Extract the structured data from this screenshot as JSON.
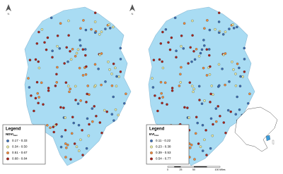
{
  "maps": [
    {
      "legend": {
        "title": "Legend",
        "field": "NDVI",
        "field_sub": "max",
        "classes": [
          {
            "label": "0.17 - 0.33",
            "color": "#3b6fb6"
          },
          {
            "label": "0.34 - 0.50",
            "color": "#e8e8a0"
          },
          {
            "label": "0.51 - 0.67",
            "color": "#f08a3c"
          },
          {
            "label": "0.68 - 0.84",
            "color": "#a8231c"
          }
        ]
      }
    },
    {
      "legend": {
        "title": "Legend",
        "field": "EVI",
        "field_sub": "max",
        "classes": [
          {
            "label": "0.11 - 0.22",
            "color": "#3b6fb6"
          },
          {
            "label": "0.23 - 0.38",
            "color": "#e8e8a0"
          },
          {
            "label": "0.39 - 0.53",
            "color": "#f08a3c"
          },
          {
            "label": "0.54 - 0.77",
            "color": "#a8231c"
          }
        ]
      }
    }
  ],
  "north": "N",
  "scale_bar": {
    "labels": [
      "0",
      "25",
      "50",
      "100 Miles"
    ]
  }
}
